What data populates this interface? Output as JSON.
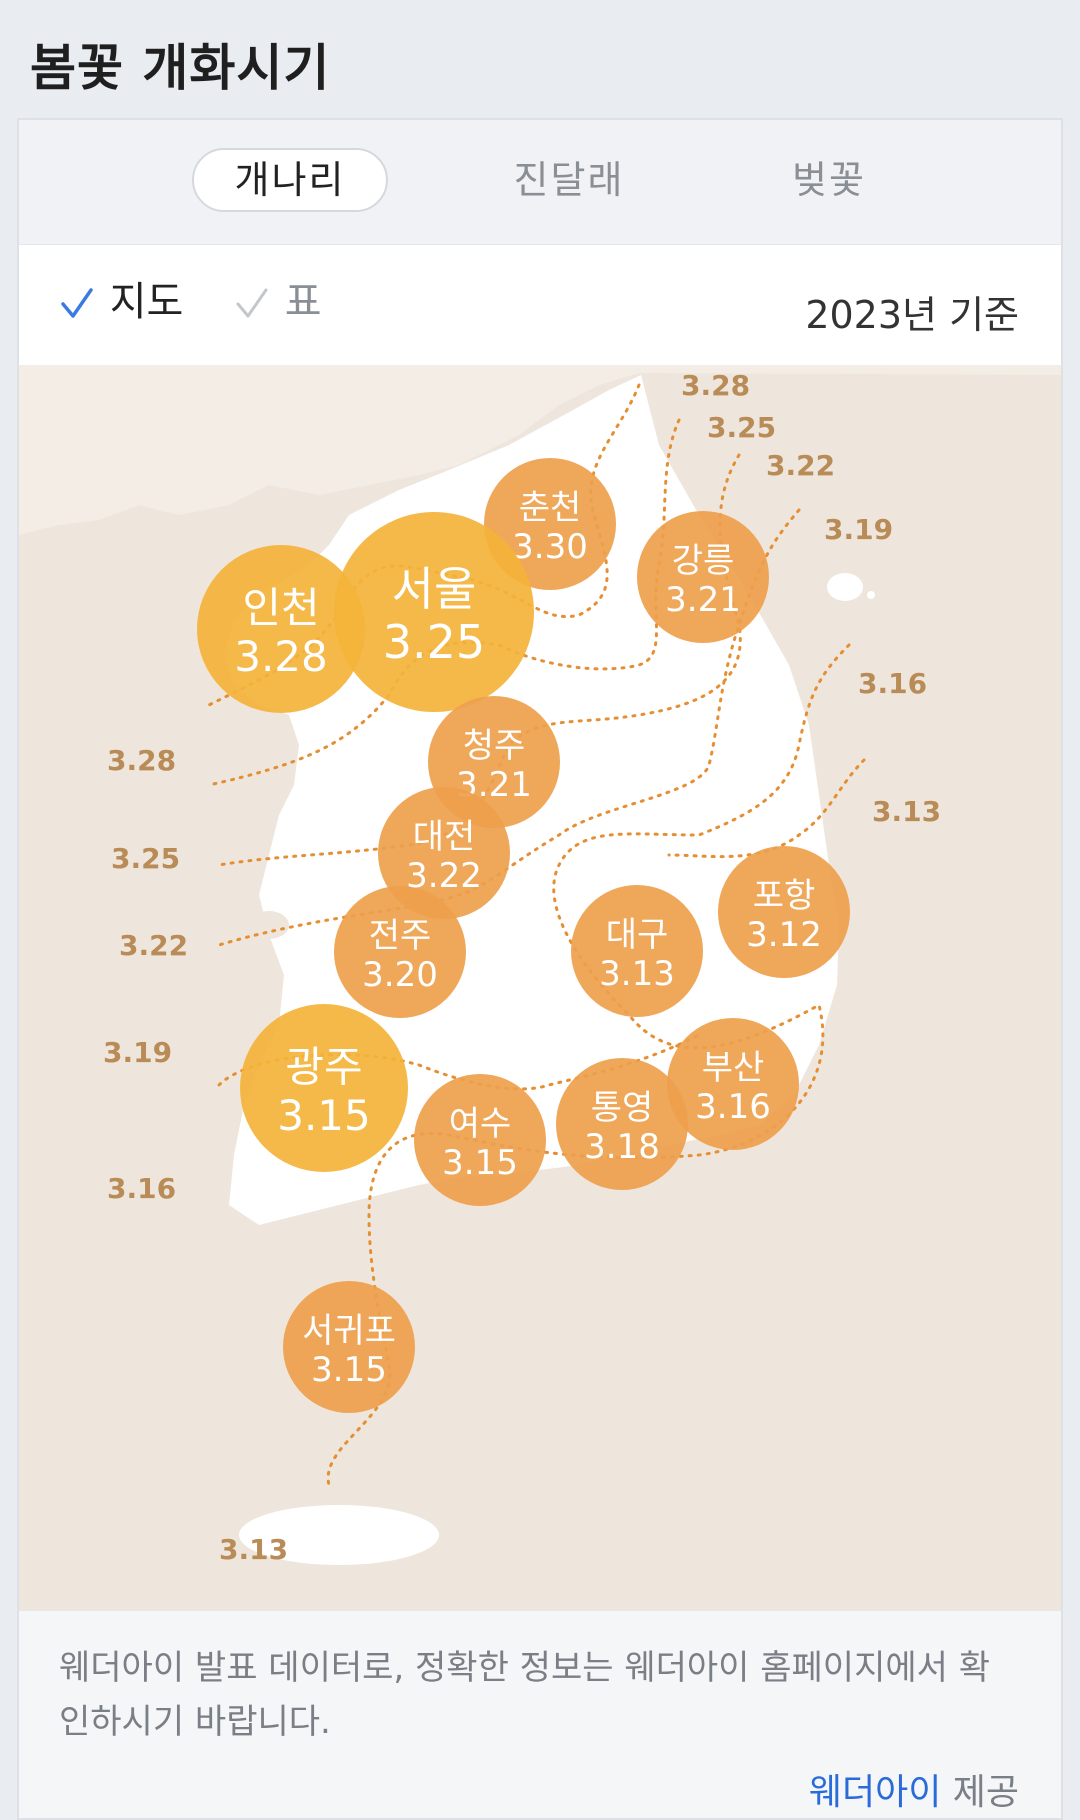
{
  "title": "봄꽃 개화시기",
  "tabs": [
    {
      "label": "개나리",
      "active": true
    },
    {
      "label": "진달래",
      "active": false
    },
    {
      "label": "벚꽃",
      "active": false
    }
  ],
  "view_toggle": {
    "map_label": "지도",
    "map_selected": true,
    "table_label": "표",
    "table_selected": false
  },
  "basis": "2023년 기준",
  "colors": {
    "accent_check": "#3b7be0",
    "bubble_large": "#f4b33a",
    "bubble_small": "#ee9f4c",
    "isoline": "#e58f34",
    "map_bg": "#eee6dc",
    "land": "#ffffff"
  },
  "cities": [
    {
      "name": "춘천",
      "date": "3.30",
      "size": "small"
    },
    {
      "name": "강릉",
      "date": "3.21",
      "size": "small"
    },
    {
      "name": "인천",
      "date": "3.28",
      "size": "large"
    },
    {
      "name": "서울",
      "date": "3.25",
      "size": "large"
    },
    {
      "name": "청주",
      "date": "3.21",
      "size": "small"
    },
    {
      "name": "대전",
      "date": "3.22",
      "size": "small"
    },
    {
      "name": "전주",
      "date": "3.20",
      "size": "small"
    },
    {
      "name": "대구",
      "date": "3.13",
      "size": "small"
    },
    {
      "name": "포항",
      "date": "3.12",
      "size": "small"
    },
    {
      "name": "광주",
      "date": "3.15",
      "size": "large"
    },
    {
      "name": "부산",
      "date": "3.16",
      "size": "small"
    },
    {
      "name": "통영",
      "date": "3.18",
      "size": "small"
    },
    {
      "name": "여수",
      "date": "3.15",
      "size": "small"
    },
    {
      "name": "서귀포",
      "date": "3.15",
      "size": "small"
    }
  ],
  "isolines_east": [
    "3.28",
    "3.25",
    "3.22",
    "3.19",
    "3.16",
    "3.13"
  ],
  "isolines_west": [
    "3.28",
    "3.25",
    "3.22",
    "3.19",
    "3.16",
    "3.13"
  ],
  "footer": {
    "note": "웨더아이 발표 데이터로, 정확한 정보는 웨더아이 홈페이지에서 확인하시기 바랍니다.",
    "source": "웨더아이",
    "provided": " 제공"
  }
}
